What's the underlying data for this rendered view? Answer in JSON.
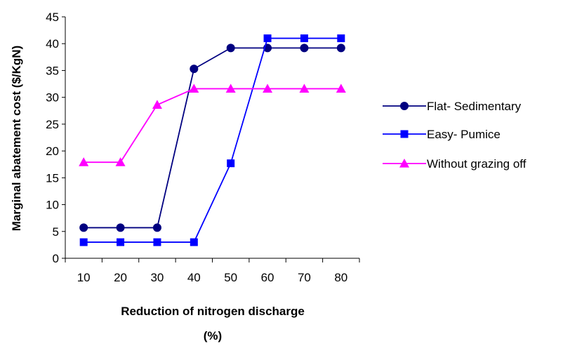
{
  "chart_data": {
    "type": "line",
    "title": "",
    "xlabel": [
      "Reduction of nitrogen discharge",
      "(%)"
    ],
    "ylabel": "Marginal abatement cost ($/KgN)",
    "categories": [
      "10",
      "20",
      "30",
      "40",
      "50",
      "60",
      "70",
      "80"
    ],
    "ylim": [
      0,
      45
    ],
    "yticks": [
      "0",
      "5",
      "10",
      "15",
      "20",
      "25",
      "30",
      "35",
      "40",
      "45"
    ],
    "grid": false,
    "legend_position": "right",
    "series": [
      {
        "name": "Flat- Sedimentary",
        "marker": "circle",
        "color": "#000080",
        "marker_color": "#000080",
        "values": [
          5.7,
          5.7,
          5.7,
          35.3,
          39.2,
          39.2,
          39.2,
          39.2
        ]
      },
      {
        "name": "Easy- Pumice",
        "marker": "square",
        "color": "#0000FF",
        "marker_color": "#0000FF",
        "values": [
          3.0,
          3.0,
          3.0,
          3.0,
          17.7,
          41.0,
          41.0,
          41.0
        ]
      },
      {
        "name": "Without grazing off",
        "marker": "triangle",
        "color": "#FF00FF",
        "marker_color": "#FF00FF",
        "values": [
          17.9,
          17.9,
          28.6,
          31.6,
          31.6,
          31.6,
          31.6,
          31.6
        ]
      }
    ]
  }
}
